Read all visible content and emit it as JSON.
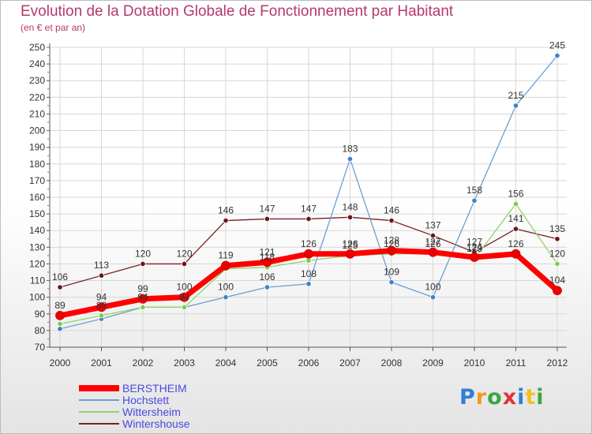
{
  "header": {
    "title": "Evolution de la Dotation Globale de Fonctionnement par Habitant",
    "subtitle": "(en € et par an)"
  },
  "logo": {
    "text": "Proxiti"
  },
  "colors": {
    "title": "#b5386d",
    "grid": "#d7d7d7",
    "axis": "#555555",
    "legend_text": "#4a4ae0",
    "tick_marks": "#e05050"
  },
  "chart_data": {
    "type": "line",
    "title": "Evolution de la Dotation Globale de Fonctionnement par Habitant",
    "subtitle": "(en € et par an)",
    "xlabel": "",
    "ylabel": "",
    "x": [
      "2000",
      "2001",
      "2002",
      "2003",
      "2004",
      "2005",
      "2006",
      "2007",
      "2008",
      "2009",
      "2010",
      "2011",
      "2012"
    ],
    "ylim": [
      70,
      250
    ],
    "yticks": [
      70,
      80,
      90,
      100,
      110,
      120,
      130,
      140,
      150,
      160,
      170,
      180,
      190,
      200,
      210,
      220,
      230,
      240,
      250
    ],
    "grid": true,
    "legend_position": "bottom-left",
    "series": [
      {
        "name": "Wintershouse",
        "color": "#7a1f24",
        "marker": "#6e1418",
        "width": 1.3,
        "values": [
          106,
          113,
          120,
          120,
          146,
          147,
          147,
          148,
          146,
          137,
          127,
          141,
          135
        ],
        "labels": [
          "106",
          "113",
          "120",
          "120",
          "146",
          "147",
          "147",
          "148",
          "146",
          "137",
          "127",
          "141",
          "135"
        ]
      },
      {
        "name": "Hochstett",
        "color": "#6a9fd0",
        "marker": "#3b82c8",
        "width": 1.3,
        "values": [
          81,
          87,
          94,
          94,
          100,
          106,
          108,
          183,
          109,
          100,
          158,
          215,
          245
        ],
        "labels": [
          "",
          "",
          "",
          "",
          "100",
          "106",
          "108",
          "183",
          "109",
          "100",
          "158",
          "215",
          "245"
        ]
      },
      {
        "name": "Wittersheim",
        "color": "#8fd468",
        "marker": "#7ccc4a",
        "width": 1.3,
        "values": [
          84,
          89,
          94,
          94,
          117,
          118,
          122,
          125,
          126,
          126,
          123,
          156,
          120
        ],
        "labels": [
          "",
          "89",
          "94",
          "94",
          "",
          "118",
          "",
          "125",
          "126",
          "126",
          "123",
          "156",
          "120"
        ]
      },
      {
        "name": "BERSTHEIM",
        "color": "#ff0000",
        "marker": "#ee0000",
        "width": 7,
        "values": [
          89,
          94,
          99,
          100,
          119,
          121,
          126,
          126,
          128,
          127,
          124,
          126,
          104
        ],
        "labels": [
          "89",
          "94",
          "99",
          "100",
          "119",
          "121",
          "126",
          "126",
          "128",
          "127",
          "124",
          "126",
          "104"
        ]
      }
    ],
    "legend": [
      "BERSTHEIM",
      "Hochstett",
      "Wittersheim",
      "Wintershouse"
    ]
  }
}
